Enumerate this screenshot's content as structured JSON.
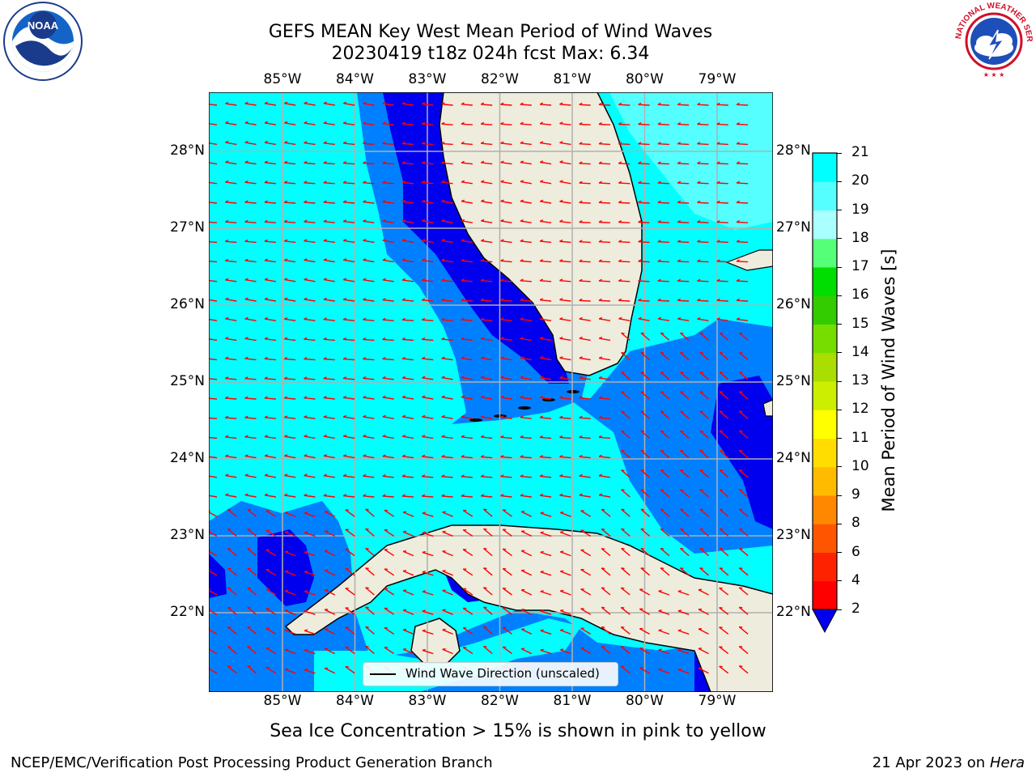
{
  "header": {
    "title_line1": "GEFS MEAN Key West Mean Period of Wind Waves",
    "title_line2": "20230419 t18z 024h fcst   Max: 6.34"
  },
  "logos": {
    "left": "noaa-logo",
    "left_text": "NOAA",
    "right": "nws-logo",
    "right_ring_text": "NATIONAL WEATHER SERVICE"
  },
  "map": {
    "lon_labels": [
      "85°W",
      "84°W",
      "83°W",
      "82°W",
      "81°W",
      "80°W",
      "79°W"
    ],
    "lat_labels": [
      "28°N",
      "27°N",
      "26°N",
      "25°N",
      "24°N",
      "23°N",
      "22°N"
    ],
    "legend_label": "Wind Wave Direction (unscaled)",
    "colors": {
      "land": "#eeecdc",
      "cyan": "#00ffff",
      "light_cyan": "#55ffff",
      "blue": "#0080ff",
      "dark_blue": "#0000ee",
      "arrow": "#ff0000",
      "grid": "#b0b0b0"
    }
  },
  "colorbar": {
    "label": "Mean Period of Wind Waves [s]",
    "ticks": [
      "2",
      "4",
      "6",
      "8",
      "9",
      "10",
      "11",
      "12",
      "13",
      "14",
      "15",
      "16",
      "17",
      "18",
      "19",
      "20",
      "21"
    ],
    "colors": [
      "#0000ee",
      "#0080ff",
      "#00ffff",
      "#55ffff",
      "#aaffff",
      "#55ff77",
      "#00dd00",
      "#33cc00",
      "#77dd00",
      "#aadd00",
      "#ccee00",
      "#ffff00",
      "#ffdd00",
      "#ffbb00",
      "#ff8800",
      "#ff5500",
      "#ff2200",
      "#ff0000"
    ]
  },
  "caption": "Sea Ice Concentration > 15% is shown in pink to yellow",
  "footer": {
    "left": "NCEP/EMC/Verification Post Processing Product Generation Branch",
    "right_prefix": "21 Apr 2023 on ",
    "right_host": "Hera"
  }
}
